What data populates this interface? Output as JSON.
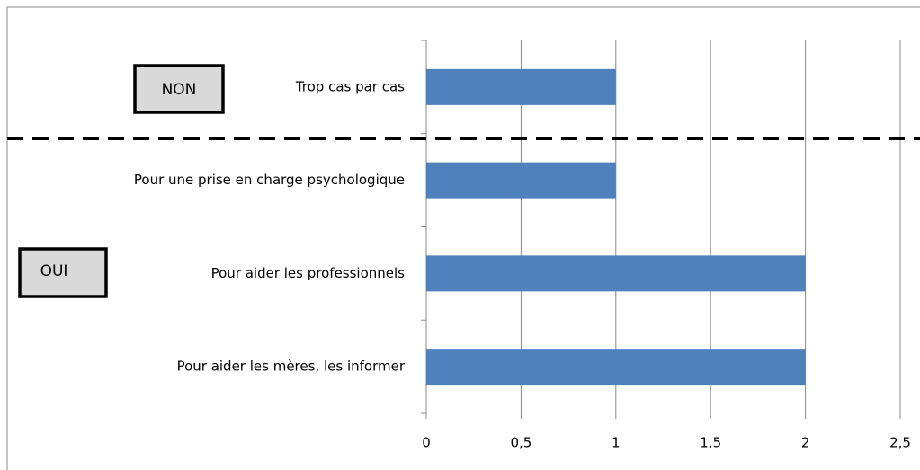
{
  "chart_data": {
    "type": "bar",
    "orientation": "horizontal",
    "categories": [
      "Trop cas par cas",
      "Pour une prise en charge psychologique",
      "Pour aider les professionnels",
      "Pour aider les mères, les informer"
    ],
    "values": [
      1,
      1,
      2,
      2
    ],
    "color": "#4f81bd",
    "xlim": [
      0,
      2.5
    ],
    "xticks": [
      0,
      {
        "value": 0.5,
        "label": "0,5"
      },
      1,
      {
        "value": 1.5,
        "label": "1,5"
      },
      2,
      {
        "value": 2.5,
        "label": "2,5"
      }
    ],
    "grid": true,
    "annotations": [
      "NON",
      "OUI"
    ]
  }
}
